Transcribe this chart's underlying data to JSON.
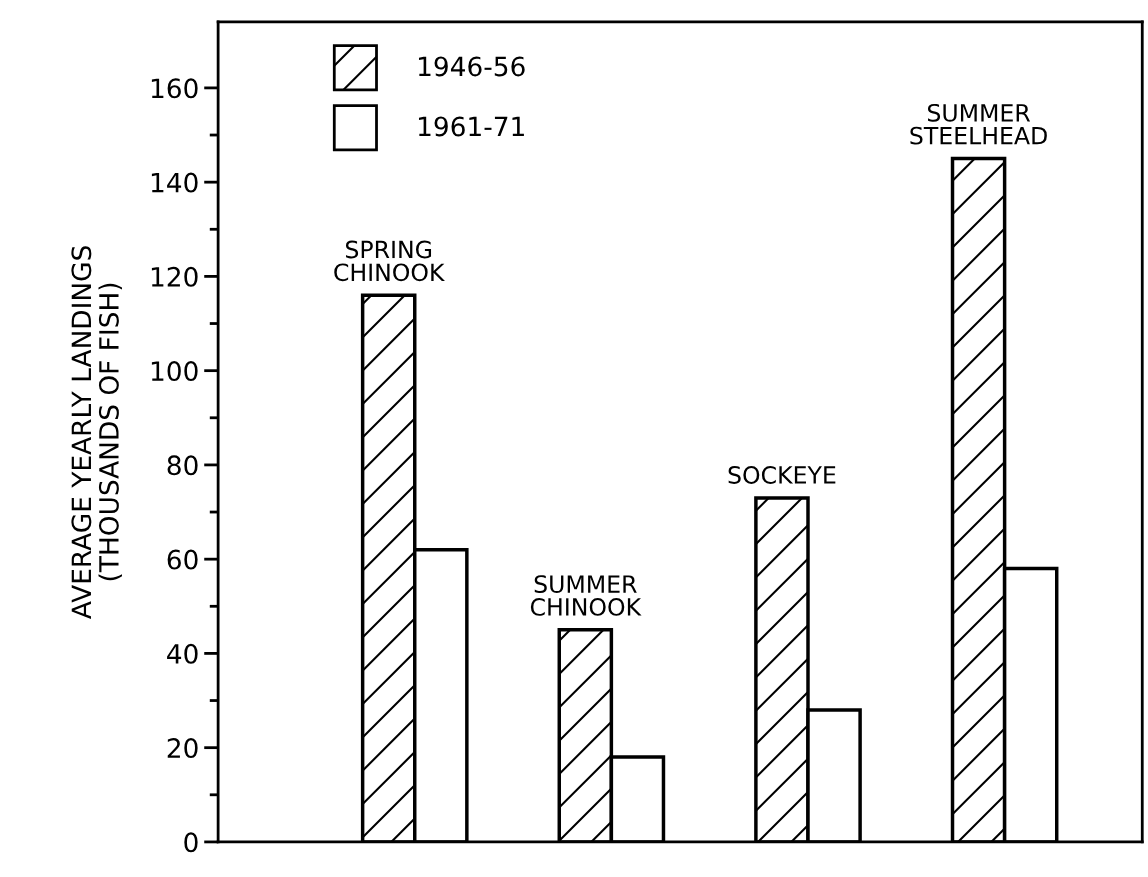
{
  "chart_data": {
    "type": "bar",
    "ylabel": "AVERAGE YEARLY LANDINGS\n(THOUSANDS OF FISH)",
    "categories": [
      "SPRING\nCHINOOK",
      "SUMMER\nCHINOOK",
      "SOCKEYE",
      "SUMMER\nSTEELHEAD"
    ],
    "series": [
      {
        "name": "1946-56",
        "color": "#000000",
        "values": [
          116,
          45,
          73,
          145
        ]
      },
      {
        "name": "1961-71",
        "color": "#ffffff",
        "values": [
          62,
          18,
          28,
          58
        ]
      }
    ],
    "ylim": [
      0,
      174
    ],
    "yticks": [
      0,
      {
        "value": 10,
        "label": null
      },
      20,
      {
        "value": 30,
        "label": null
      },
      40,
      {
        "value": 50,
        "label": null
      },
      60,
      {
        "value": 70,
        "label": null
      },
      80,
      {
        "value": 90,
        "label": null
      },
      100,
      {
        "value": 110,
        "label": null
      },
      120,
      {
        "value": 130,
        "label": null
      },
      140,
      {
        "value": 150,
        "label": null
      },
      160
    ],
    "tick_labels": "y",
    "grid": false,
    "legend": "top left"
  }
}
